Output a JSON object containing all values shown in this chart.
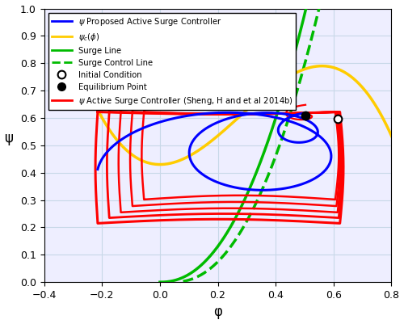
{
  "xlabel": "φ",
  "ylabel": "ψ",
  "xlim": [
    -0.4,
    0.8
  ],
  "ylim": [
    0,
    1.0
  ],
  "xticks": [
    -0.4,
    -0.2,
    0.0,
    0.2,
    0.4,
    0.6,
    0.8
  ],
  "yticks": [
    0.0,
    0.1,
    0.2,
    0.3,
    0.4,
    0.5,
    0.6,
    0.7,
    0.8,
    0.9,
    1.0
  ],
  "eq_point": [
    0.503,
    0.608
  ],
  "init_condition_red": [
    0.615,
    0.597
  ],
  "init_condition_blue": [
    0.615,
    0.597
  ],
  "surge_line_color": "#00bb00",
  "blue_color": "#0000ff",
  "red_color": "#ff0000",
  "yellow_color": "#ffcc00",
  "background_color": "#eeeeff"
}
